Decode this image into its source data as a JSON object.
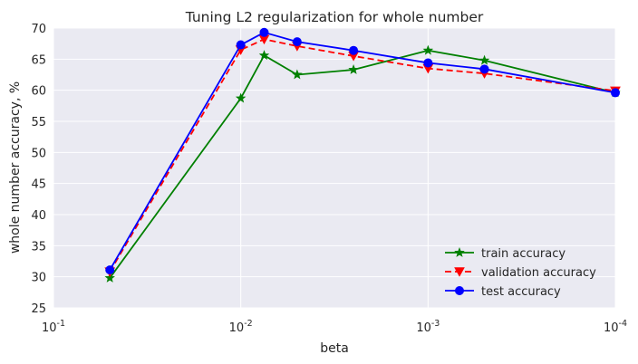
{
  "chart_data": {
    "type": "line",
    "title": "Tuning L2 regularization for whole number",
    "xlabel": "beta",
    "ylabel": "whole number accuracy, %",
    "xscale": "log",
    "x_reversed": true,
    "xlim": [
      0.1,
      0.0001
    ],
    "ylim": [
      25,
      70
    ],
    "grid": true,
    "legend_position": "lower-right",
    "x_ticks": [
      {
        "value": 0.1,
        "base": "10",
        "exp": "-1"
      },
      {
        "value": 0.01,
        "base": "10",
        "exp": "-2"
      },
      {
        "value": 0.001,
        "base": "10",
        "exp": "-3"
      },
      {
        "value": 0.0001,
        "base": "10",
        "exp": "-4"
      }
    ],
    "y_ticks": [
      "25",
      "30",
      "35",
      "40",
      "45",
      "50",
      "55",
      "60",
      "65",
      "70"
    ],
    "x": [
      0.05,
      0.01,
      0.0075,
      0.005,
      0.0025,
      0.001,
      0.0005,
      0.0001
    ],
    "series": [
      {
        "name": "train accuracy",
        "color": "#008000",
        "dash": "solid",
        "marker": "star",
        "values": [
          29.8,
          58.7,
          65.6,
          62.5,
          63.3,
          66.4,
          64.8,
          59.6
        ]
      },
      {
        "name": "validation accuracy",
        "color": "#ff0000",
        "dash": "dashed",
        "marker": "triangle-down",
        "values": [
          30.8,
          66.5,
          68.2,
          67.1,
          65.5,
          63.5,
          62.7,
          59.9
        ]
      },
      {
        "name": "test accuracy",
        "color": "#0000ff",
        "dash": "solid",
        "marker": "circle",
        "values": [
          31.1,
          67.3,
          69.3,
          67.8,
          66.4,
          64.4,
          63.4,
          59.6
        ]
      }
    ]
  }
}
